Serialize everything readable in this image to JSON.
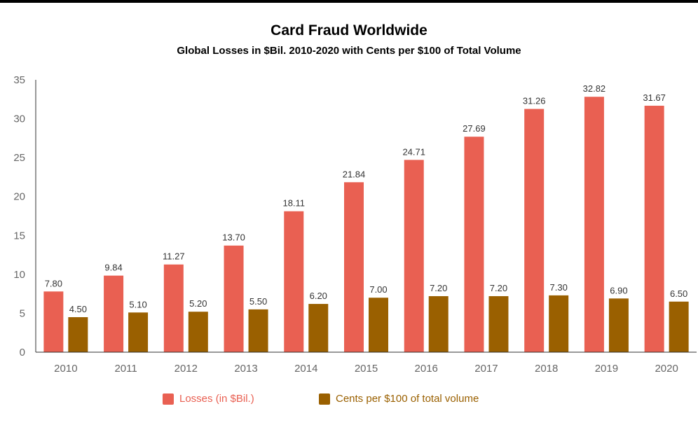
{
  "chart_data": {
    "type": "bar",
    "title": "Card Fraud Worldwide",
    "subtitle": "Global Losses in $Bil. 2010-2020 with Cents per $100 of Total Volume",
    "categories": [
      "2010",
      "2011",
      "2012",
      "2013",
      "2014",
      "2015",
      "2016",
      "2017",
      "2018",
      "2019",
      "2020"
    ],
    "series": [
      {
        "name": "Losses (in $Bil.)",
        "color": "#e96052",
        "values": [
          7.8,
          9.84,
          11.27,
          13.7,
          18.11,
          21.84,
          24.71,
          27.69,
          31.26,
          32.82,
          31.67
        ],
        "labels": [
          "7.80",
          "9.84",
          "11.27",
          "13.70",
          "18.11",
          "21.84",
          "24.71",
          "27.69",
          "31.26",
          "32.82",
          "31.67"
        ]
      },
      {
        "name": "Cents per $100 of total volume",
        "color": "#9a6000",
        "values": [
          4.5,
          5.1,
          5.2,
          5.5,
          6.2,
          7.0,
          7.2,
          7.2,
          7.3,
          6.9,
          6.5
        ],
        "labels": [
          "4.50",
          "5.10",
          "5.20",
          "5.50",
          "6.20",
          "7.00",
          "7.20",
          "7.20",
          "7.30",
          "6.90",
          "6.50"
        ]
      }
    ],
    "yticks": [
      "0",
      "5",
      "10",
      "15",
      "20",
      "25",
      "30",
      "35"
    ],
    "ylim": [
      0,
      35
    ],
    "grid": false,
    "legend_position": "bottom"
  }
}
